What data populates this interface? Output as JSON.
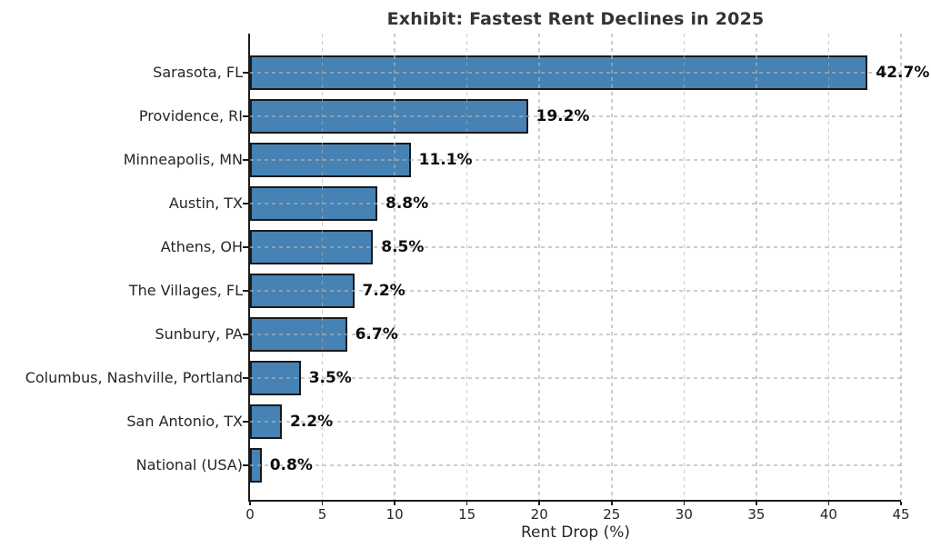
{
  "chart_data": {
    "type": "bar",
    "orientation": "horizontal",
    "title": "Exhibit: Fastest Rent Declines in 2025",
    "xlabel": "Rent Drop (%)",
    "ylabel": "",
    "categories": [
      "Sarasota, FL",
      "Providence, RI",
      "Minneapolis, MN",
      "Austin, TX",
      "Athens, OH",
      "The Villages, FL",
      "Sunbury, PA",
      "Columbus, Nashville, Portland",
      "San Antonio, TX",
      "National (USA)"
    ],
    "values": [
      42.7,
      19.2,
      11.1,
      8.8,
      8.5,
      7.2,
      6.7,
      3.5,
      2.2,
      0.8
    ],
    "value_labels": [
      "42.7%",
      "19.2%",
      "11.1%",
      "8.8%",
      "8.5%",
      "7.2%",
      "6.7%",
      "3.5%",
      "2.2%",
      "0.8%"
    ],
    "xlim": [
      0,
      45
    ],
    "xticks": [
      0,
      5,
      10,
      15,
      20,
      25,
      30,
      35,
      40,
      45
    ],
    "grid": true,
    "grid_style": "dashed",
    "legend": "none",
    "bar_color": "#4682B4",
    "bar_edge_color": "#1a1a1a",
    "title_color": "#333333",
    "label_color": "#262626"
  }
}
